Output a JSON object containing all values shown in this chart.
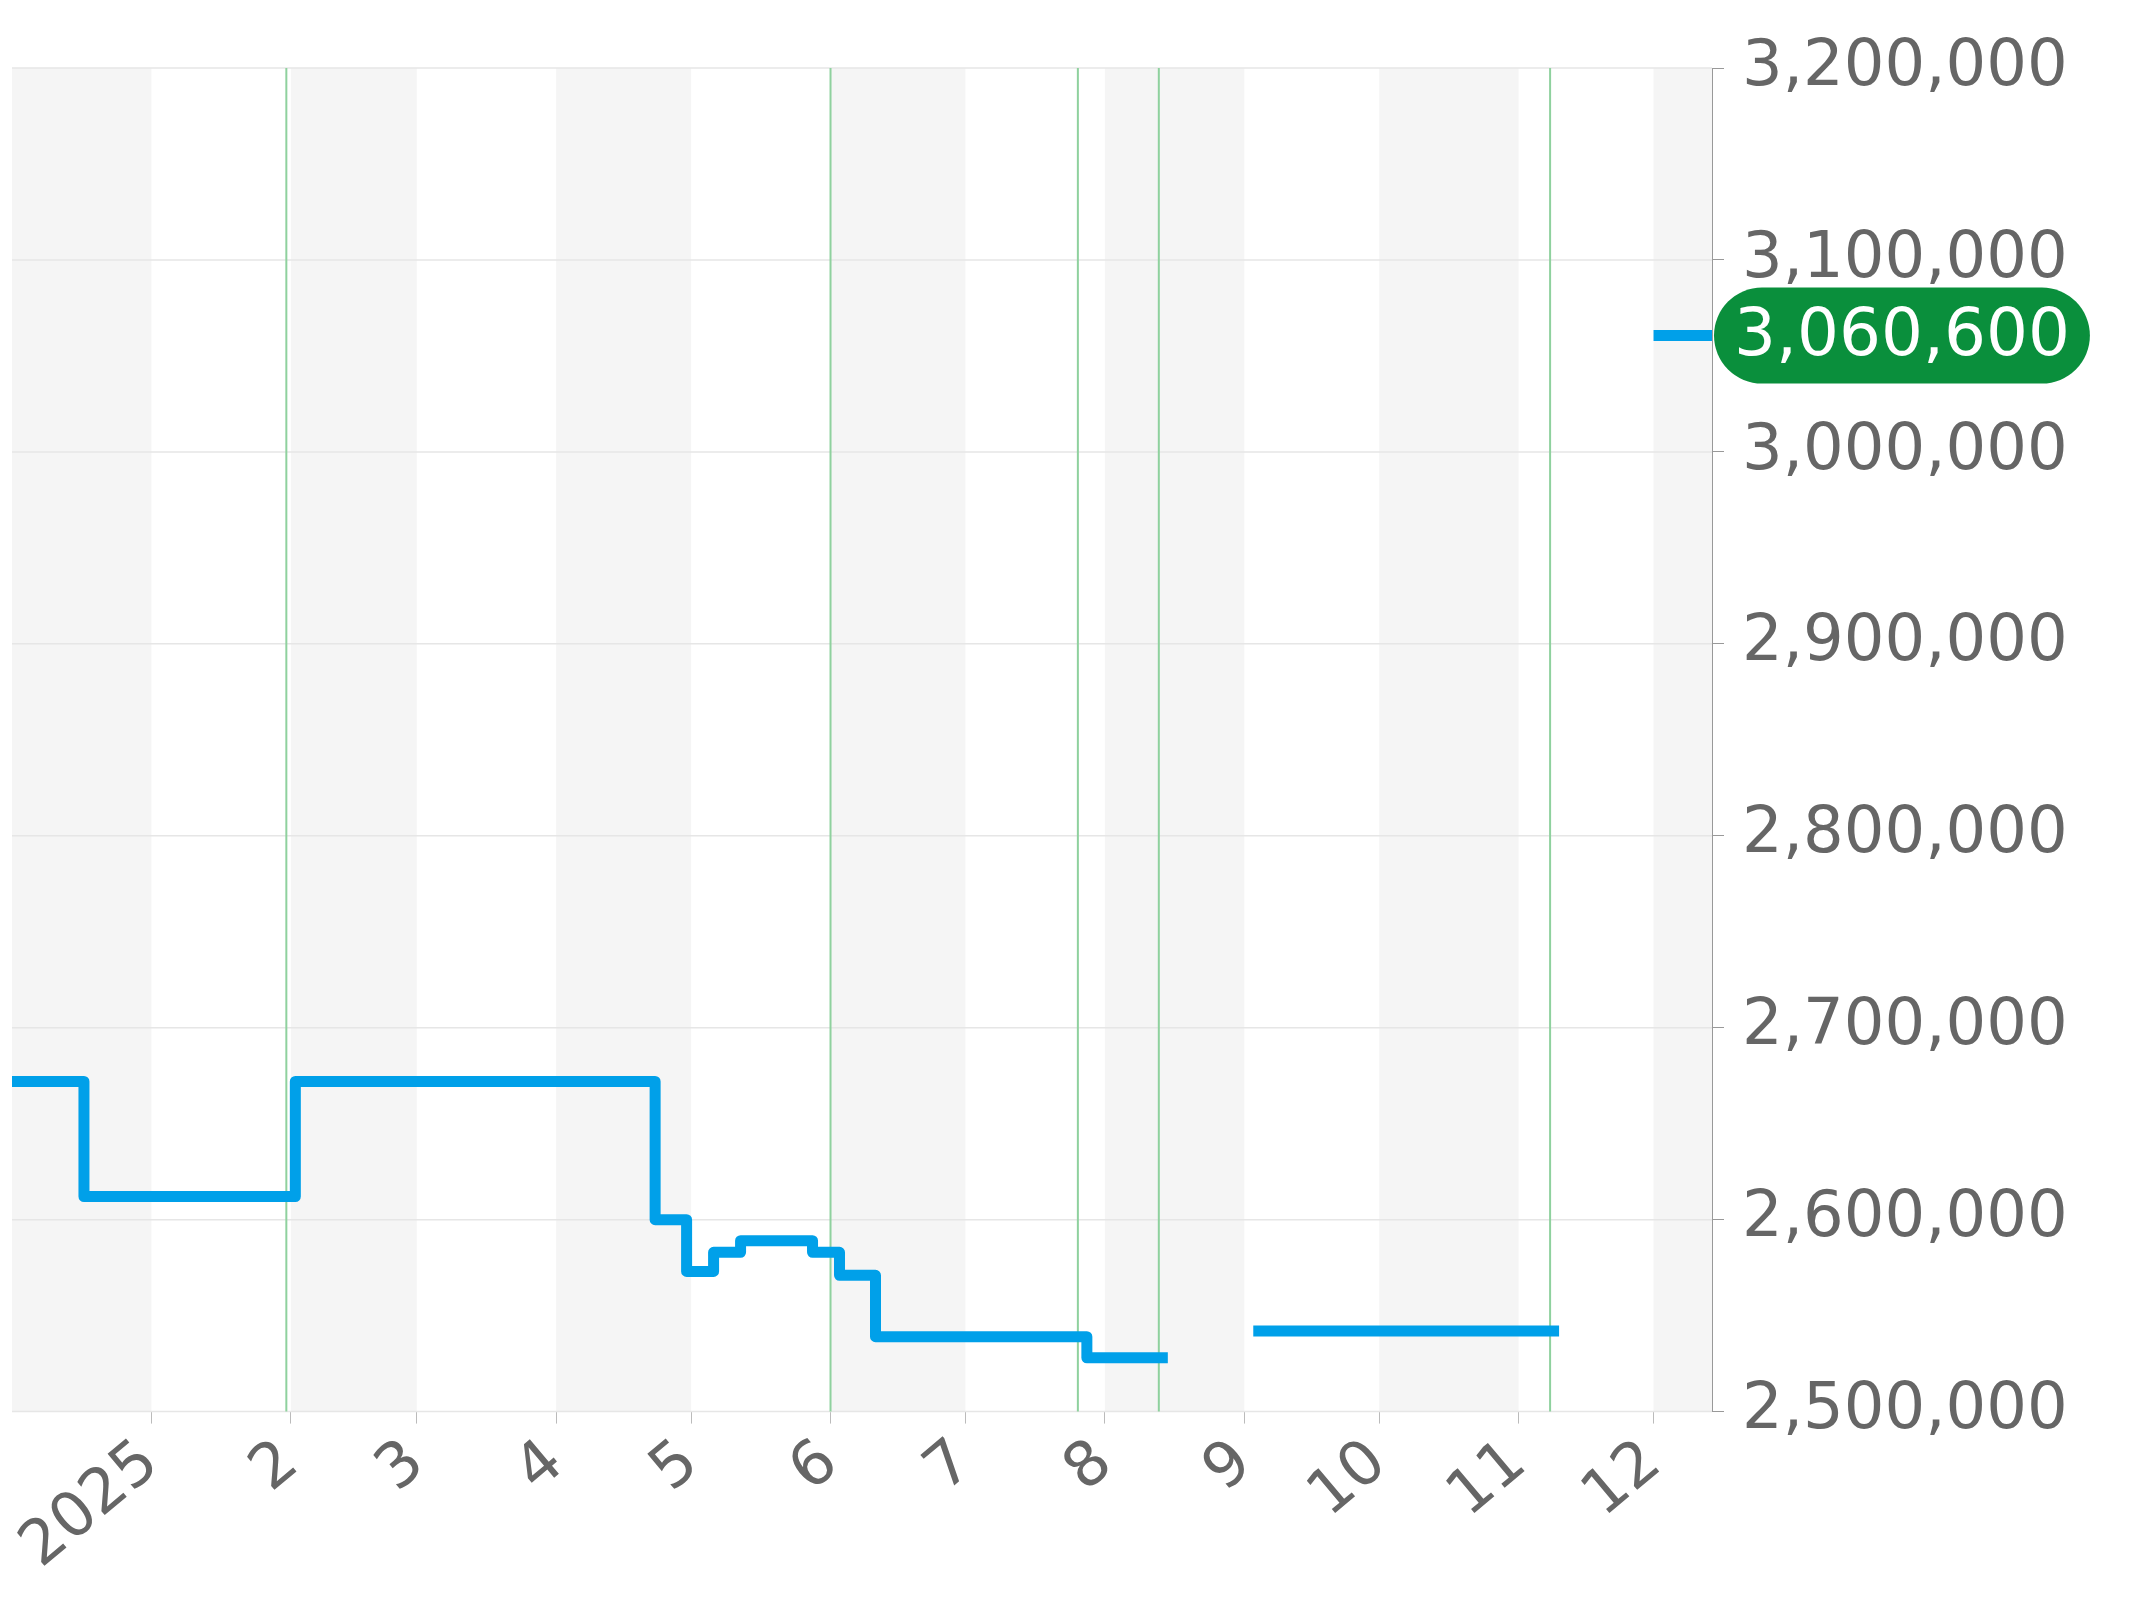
{
  "chart_data": {
    "type": "step",
    "x": [
      "2024-12-01",
      "2024-12-17",
      "2025-02-02",
      "2025-04-23",
      "2025-04-30",
      "2025-05-06",
      "2025-05-12",
      "2025-05-28",
      "2025-06-03",
      "2025-06-11",
      "2025-07-28",
      "2025-08-15",
      "2025-08-25",
      "2025-09-03",
      "2025-11-10",
      "2025-11-20",
      "2025-12-01",
      "2025-12-14"
    ],
    "series": [
      {
        "color": "#00a0e9",
        "values": [
          2672000,
          2612000,
          2672000,
          2600000,
          2573000,
          2583000,
          2589000,
          2583000,
          2571000,
          2539000,
          2528000,
          2528000,
          null,
          2542000,
          2542000,
          null,
          3060600,
          3060600
        ]
      }
    ],
    "xlim": [
      "2024-12-01",
      "2025-12-14"
    ],
    "xticks": [
      {
        "value": "2025-01-01",
        "label": "2025"
      },
      {
        "value": "2025-02-01",
        "label": "2"
      },
      {
        "value": "2025-03-01",
        "label": "3"
      },
      {
        "value": "2025-04-01",
        "label": "4"
      },
      {
        "value": "2025-05-01",
        "label": "5"
      },
      {
        "value": "2025-06-01",
        "label": "6"
      },
      {
        "value": "2025-07-01",
        "label": "7"
      },
      {
        "value": "2025-08-01",
        "label": "8"
      },
      {
        "value": "2025-09-01",
        "label": "9"
      },
      {
        "value": "2025-10-01",
        "label": "10"
      },
      {
        "value": "2025-11-01",
        "label": "11"
      },
      {
        "value": "2025-12-01",
        "label": "12"
      }
    ],
    "ylim": [
      2500000,
      3200000
    ],
    "yticks": [
      {
        "value": 2500000,
        "label": "2,500,000"
      },
      {
        "value": 2600000,
        "label": "2,600,000"
      },
      {
        "value": 2700000,
        "label": "2,700,000"
      },
      {
        "value": 2800000,
        "label": "2,800,000"
      },
      {
        "value": 2900000,
        "label": "2,900,000"
      },
      {
        "value": 3000000,
        "label": "3,000,000"
      },
      {
        "value": 3100000,
        "label": "3,100,000"
      },
      {
        "value": 3200000,
        "label": "3,200,000"
      }
    ],
    "grid": "y",
    "legend": false,
    "marker": "none",
    "line_style": "solid",
    "bands": [
      {
        "axis": "x",
        "from": "2024-12-01",
        "to": "2025-01-01",
        "color": "#f5f5f5"
      },
      {
        "axis": "x",
        "from": "2025-02-01",
        "to": "2025-03-01",
        "color": "#f5f5f5"
      },
      {
        "axis": "x",
        "from": "2025-04-01",
        "to": "2025-05-01",
        "color": "#f5f5f5"
      },
      {
        "axis": "x",
        "from": "2025-06-01",
        "to": "2025-07-01",
        "color": "#f5f5f5"
      },
      {
        "axis": "x",
        "from": "2025-08-01",
        "to": "2025-09-01",
        "color": "#f5f5f5"
      },
      {
        "axis": "x",
        "from": "2025-10-01",
        "to": "2025-11-01",
        "color": "#f5f5f5"
      },
      {
        "axis": "x",
        "from": "2025-12-01",
        "to": "2025-12-14",
        "color": "#f5f5f5"
      }
    ],
    "ref_lines": [
      {
        "axis": "x",
        "value": "2025-01-31",
        "color": "#8fd19e"
      },
      {
        "axis": "x",
        "value": "2025-06-01",
        "color": "#8fd19e"
      },
      {
        "axis": "x",
        "value": "2025-07-26",
        "color": "#8fd19e"
      },
      {
        "axis": "x",
        "value": "2025-08-13",
        "color": "#8fd19e"
      },
      {
        "axis": "x",
        "value": "2025-11-08",
        "color": "#8fd19e"
      }
    ],
    "annotations": [
      {
        "text": "3,060,600",
        "x": "2025-12-14",
        "y": 3060600
      }
    ]
  }
}
